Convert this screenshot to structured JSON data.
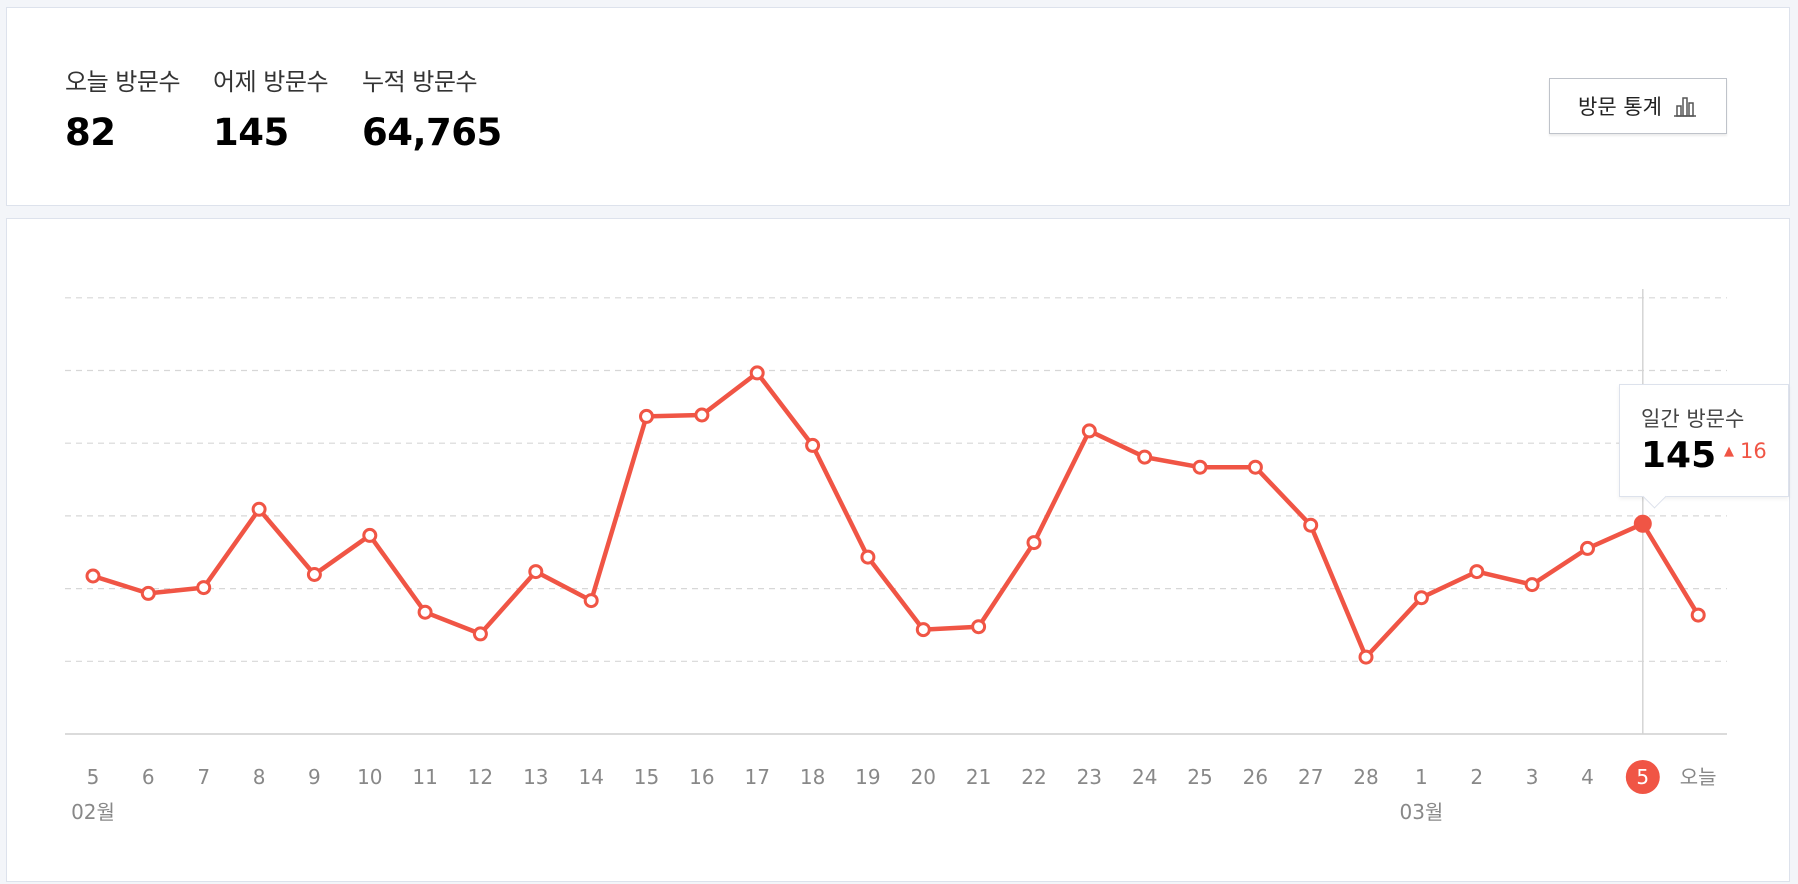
{
  "summary": {
    "today_label": "오늘 방문수",
    "today_value": "82",
    "yesterday_label": "어제 방문수",
    "yesterday_value": "145",
    "total_label": "누적 방문수",
    "total_value": "64,765",
    "stats_button_label": "방문 통계",
    "stats_button_icon": "bar-chart-icon"
  },
  "tooltip": {
    "label": "일간 방문수",
    "value": "145",
    "delta": "16",
    "delta_icon": "triangle-up-icon"
  },
  "colors": {
    "accent": "#f05545",
    "grid": "#d7d7d7",
    "tick": "#888888",
    "card_border": "#dde2ec"
  },
  "chart_data": {
    "type": "line",
    "x": [
      "5",
      "6",
      "7",
      "8",
      "9",
      "10",
      "11",
      "12",
      "13",
      "14",
      "15",
      "16",
      "17",
      "18",
      "19",
      "20",
      "21",
      "22",
      "23",
      "24",
      "25",
      "26",
      "27",
      "28",
      "1",
      "2",
      "3",
      "4",
      "5",
      "오늘"
    ],
    "month_labels": [
      {
        "index": 0,
        "label": "02월"
      },
      {
        "index": 24,
        "label": "03월"
      }
    ],
    "highlight_index": 28,
    "series": [
      {
        "values": [
          109,
          97,
          101,
          155,
          110,
          137,
          84,
          69,
          112,
          92,
          219,
          220,
          249,
          199,
          122,
          72,
          74,
          132,
          209,
          191,
          184,
          184,
          144,
          53,
          94,
          112,
          103,
          128,
          145,
          82
        ]
      }
    ],
    "ylim": [
      0,
      300
    ],
    "grid": true
  }
}
